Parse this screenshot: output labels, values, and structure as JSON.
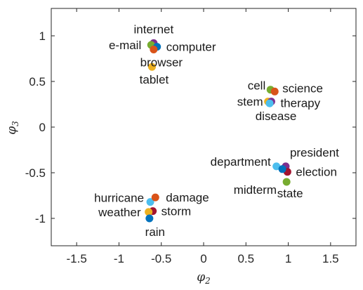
{
  "chart_data": {
    "type": "scatter",
    "title": "",
    "xlabel": "φ2",
    "ylabel": "φ3",
    "xlim": [
      -1.8,
      1.8
    ],
    "ylim": [
      -1.3,
      1.3
    ],
    "xticks": [
      -1.5,
      -1,
      -0.5,
      0,
      0.5,
      1,
      1.5
    ],
    "xtick_labels": [
      "-1.5",
      "-1",
      "-0.5",
      "0",
      "0.5",
      "1",
      "1.5"
    ],
    "yticks": [
      -1,
      -0.5,
      0,
      0.5,
      1
    ],
    "ytick_labels": [
      "-1",
      "-0.5",
      "0",
      "0.5",
      "1"
    ],
    "grid": false,
    "colors": {
      "blue": "#0072bd",
      "orange": "#d95319",
      "yellow": "#edb120",
      "purple": "#7e2f8e",
      "green": "#77ac30",
      "lightblue": "#4dbeee",
      "red": "#a2142f"
    },
    "points": [
      {
        "label": "internet",
        "x": -0.59,
        "y": 0.92,
        "color": "#7e2f8e",
        "anchor": "middle",
        "dx": 0,
        "dy": -14
      },
      {
        "label": "e-mail",
        "x": -0.62,
        "y": 0.9,
        "color": "#77ac30",
        "anchor": "end",
        "dx": -14,
        "dy": 6
      },
      {
        "label": "computer",
        "x": -0.55,
        "y": 0.88,
        "color": "#0072bd",
        "anchor": "start",
        "dx": 13,
        "dy": 6
      },
      {
        "label": "browser",
        "x": -0.59,
        "y": 0.85,
        "color": "#d95319",
        "anchor": "middle",
        "dx": 11,
        "dy": 24
      },
      {
        "label": "tablet",
        "x": -0.61,
        "y": 0.66,
        "color": "#edb120",
        "anchor": "middle",
        "dx": 3,
        "dy": 24
      },
      {
        "label": "cell",
        "x": 0.79,
        "y": 0.41,
        "color": "#77ac30",
        "anchor": "end",
        "dx": -7,
        "dy": 0
      },
      {
        "label": "science",
        "x": 0.84,
        "y": 0.39,
        "color": "#d95319",
        "anchor": "start",
        "dx": 11,
        "dy": 1
      },
      {
        "label": "stem",
        "x": 0.76,
        "y": 0.28,
        "color": "#edb120",
        "anchor": "end",
        "dx": -7,
        "dy": 6
      },
      {
        "label": "therapy",
        "x": 0.8,
        "y": 0.28,
        "color": "#7e2f8e",
        "anchor": "start",
        "dx": 13,
        "dy": 8
      },
      {
        "label": "disease",
        "x": 0.78,
        "y": 0.26,
        "color": "#4dbeee",
        "anchor": "middle",
        "dx": 9,
        "dy": 24
      },
      {
        "label": "department",
        "x": 0.86,
        "y": -0.43,
        "color": "#4dbeee",
        "anchor": "end",
        "dx": -8,
        "dy": -1
      },
      {
        "label": "president",
        "x": 0.97,
        "y": -0.43,
        "color": "#7e2f8e",
        "anchor": "start",
        "dx": 6,
        "dy": -14
      },
      {
        "label": "election",
        "x": 0.99,
        "y": -0.49,
        "color": "#a2142f",
        "anchor": "start",
        "dx": 12,
        "dy": 6
      },
      {
        "label": "midterm",
        "x": 0.93,
        "y": -0.46,
        "color": "#0072bd",
        "anchor": "end",
        "dx": -8,
        "dy": 35
      },
      {
        "label": "state",
        "x": 0.98,
        "y": -0.6,
        "color": "#77ac30",
        "anchor": "middle",
        "dx": 5,
        "dy": 22
      },
      {
        "label": "hurricane",
        "x": -0.63,
        "y": -0.82,
        "color": "#4dbeee",
        "anchor": "end",
        "dx": -9,
        "dy": 0
      },
      {
        "label": "damage",
        "x": -0.57,
        "y": -0.77,
        "color": "#d95319",
        "anchor": "start",
        "dx": 15,
        "dy": 6
      },
      {
        "label": "storm",
        "x": -0.6,
        "y": -0.92,
        "color": "#a2142f",
        "anchor": "start",
        "dx": 12,
        "dy": 6
      },
      {
        "label": "weather",
        "x": -0.65,
        "y": -0.93,
        "color": "#edb120",
        "anchor": "end",
        "dx": -11,
        "dy": 6
      },
      {
        "label": "rain",
        "x": -0.64,
        "y": -1.0,
        "color": "#0072bd",
        "anchor": "middle",
        "dx": 8,
        "dy": 25
      }
    ]
  }
}
